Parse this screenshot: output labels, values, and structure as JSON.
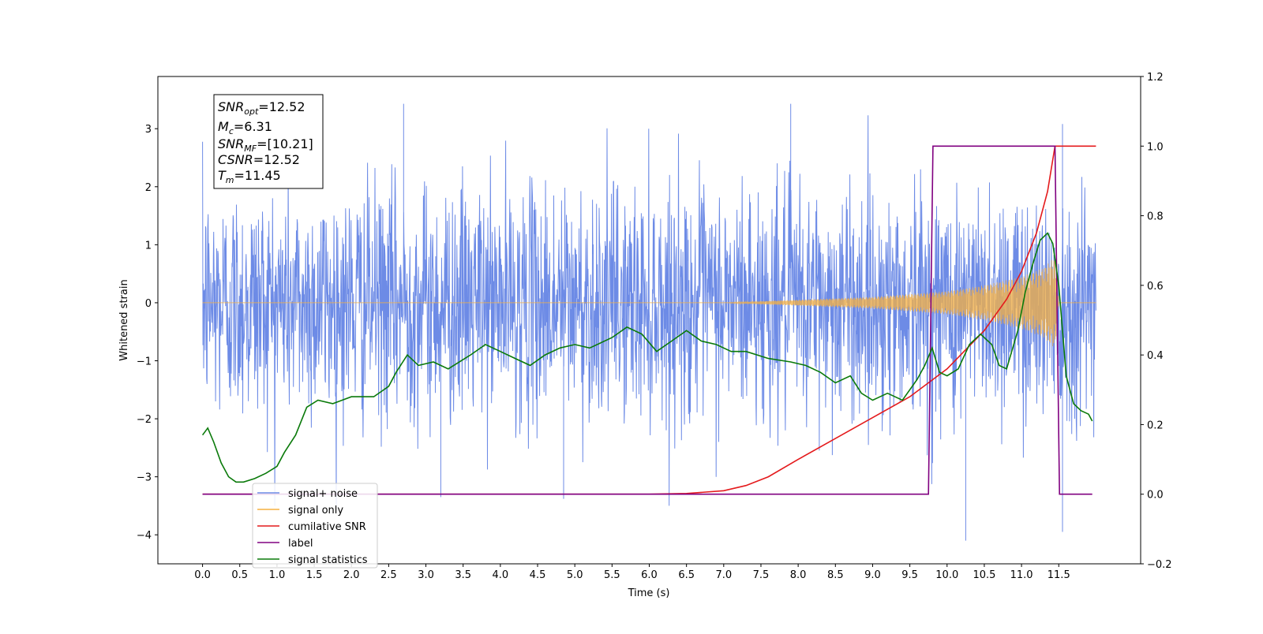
{
  "chart_data": {
    "type": "line",
    "xlabel": "Time (s)",
    "ylabel": "Whitened strain",
    "xlim": [
      -0.6,
      12.6
    ],
    "ylim_left": [
      -4.5,
      3.9
    ],
    "ylim_right": [
      -0.2,
      1.2
    ],
    "x_ticks": [
      0.0,
      0.5,
      1.0,
      1.5,
      2.0,
      2.5,
      3.0,
      3.5,
      4.0,
      4.5,
      5.0,
      5.5,
      6.0,
      6.5,
      7.0,
      7.5,
      8.0,
      8.5,
      9.0,
      9.5,
      10.0,
      10.5,
      11.0,
      11.5
    ],
    "x_tick_labels": [
      "0.0",
      "0.5",
      "1.0",
      "1.5",
      "2.0",
      "2.5",
      "3.0",
      "3.5",
      "4.0",
      "4.5",
      "5.0",
      "5.5",
      "6.0",
      "6.5",
      "7.0",
      "7.5",
      "8.0",
      "8.5",
      "9.0",
      "9.5",
      "10.0",
      "10.5",
      "11.0",
      "11.5"
    ],
    "y_ticks_left": [
      3,
      2,
      1,
      0,
      -1,
      -2,
      -3,
      -4
    ],
    "y_tick_labels_left": [
      "3",
      "2",
      "1",
      "0",
      "−1",
      "−2",
      "−3",
      "−4"
    ],
    "y_ticks_right": [
      1.2,
      1.0,
      0.8,
      0.6,
      0.4,
      0.2,
      0.0,
      -0.2
    ],
    "y_tick_labels_right": [
      "1.2",
      "1.0",
      "0.8",
      "0.6",
      "0.4",
      "0.2",
      "0.0",
      "−0.2"
    ],
    "grid": false,
    "legend_position": "bottom-left",
    "info_box": {
      "snr_opt": {
        "main": "SNR",
        "sub": "opt",
        "value": "=12.52"
      },
      "mc": {
        "main": "M",
        "sub": "c",
        "value": "=6.31"
      },
      "snr_mf": {
        "main": "SNR",
        "sub": "MF",
        "value": "=[10.21]"
      },
      "csnr": {
        "main": "CSNR",
        "sub": "",
        "value": "=12.52"
      },
      "tm": {
        "main": "T",
        "sub": "m",
        "value": "=11.45"
      }
    },
    "series": [
      {
        "name": "signal+ noise",
        "color": "#6d8be6",
        "axis": "left",
        "kind": "noise",
        "x_range": [
          0.0,
          12.0
        ],
        "envelope": {
          "sigma": 1.0,
          "max": 3.43,
          "min": -4.1
        },
        "outliers": [
          [
            2.7,
            3.43
          ],
          [
            10.25,
            -4.1
          ],
          [
            11.55,
            -3.95
          ],
          [
            3.2,
            -3.35
          ],
          [
            4.85,
            -3.38
          ],
          [
            7.9,
            3.43
          ],
          [
            11.55,
            3.08
          ]
        ]
      },
      {
        "name": "signal only",
        "color": "#f5b041",
        "axis": "left",
        "kind": "chirp",
        "x_range": [
          0.0,
          12.0
        ],
        "amplitude_points": [
          [
            0.0,
            0.0
          ],
          [
            7.0,
            0.0
          ],
          [
            8.0,
            0.05
          ],
          [
            9.0,
            0.1
          ],
          [
            10.0,
            0.2
          ],
          [
            10.5,
            0.3
          ],
          [
            11.0,
            0.45
          ],
          [
            11.3,
            0.6
          ],
          [
            11.45,
            0.8
          ],
          [
            11.5,
            0.0
          ],
          [
            12.0,
            0.0
          ]
        ]
      },
      {
        "name": "cumilative SNR",
        "color": "#e41a1c",
        "axis": "right",
        "points": [
          [
            0.0,
            0.0
          ],
          [
            6.0,
            0.0
          ],
          [
            6.5,
            0.002
          ],
          [
            7.0,
            0.01
          ],
          [
            7.3,
            0.025
          ],
          [
            7.6,
            0.05
          ],
          [
            8.0,
            0.1
          ],
          [
            8.5,
            0.16
          ],
          [
            9.0,
            0.22
          ],
          [
            9.5,
            0.28
          ],
          [
            10.0,
            0.36
          ],
          [
            10.5,
            0.47
          ],
          [
            10.8,
            0.56
          ],
          [
            11.0,
            0.64
          ],
          [
            11.2,
            0.75
          ],
          [
            11.35,
            0.87
          ],
          [
            11.45,
            1.0
          ],
          [
            12.0,
            1.0
          ]
        ]
      },
      {
        "name": "label",
        "color": "#800080",
        "axis": "right",
        "points": [
          [
            0.0,
            0.0
          ],
          [
            9.75,
            0.0
          ],
          [
            9.81,
            1.0
          ],
          [
            11.45,
            1.0
          ],
          [
            11.51,
            0.0
          ],
          [
            11.95,
            0.0
          ]
        ]
      },
      {
        "name": "signal statistics",
        "color": "#0a7a0a",
        "axis": "right",
        "points": [
          [
            0.0,
            0.17
          ],
          [
            0.07,
            0.19
          ],
          [
            0.15,
            0.15
          ],
          [
            0.25,
            0.09
          ],
          [
            0.35,
            0.05
          ],
          [
            0.45,
            0.035
          ],
          [
            0.55,
            0.035
          ],
          [
            0.7,
            0.045
          ],
          [
            0.85,
            0.06
          ],
          [
            1.0,
            0.08
          ],
          [
            1.1,
            0.12
          ],
          [
            1.25,
            0.17
          ],
          [
            1.4,
            0.25
          ],
          [
            1.55,
            0.27
          ],
          [
            1.75,
            0.26
          ],
          [
            2.0,
            0.28
          ],
          [
            2.3,
            0.28
          ],
          [
            2.5,
            0.31
          ],
          [
            2.6,
            0.35
          ],
          [
            2.75,
            0.4
          ],
          [
            2.9,
            0.37
          ],
          [
            3.1,
            0.38
          ],
          [
            3.3,
            0.36
          ],
          [
            3.6,
            0.4
          ],
          [
            3.8,
            0.43
          ],
          [
            4.0,
            0.41
          ],
          [
            4.2,
            0.39
          ],
          [
            4.4,
            0.37
          ],
          [
            4.6,
            0.4
          ],
          [
            4.8,
            0.42
          ],
          [
            5.0,
            0.43
          ],
          [
            5.2,
            0.42
          ],
          [
            5.5,
            0.45
          ],
          [
            5.7,
            0.48
          ],
          [
            5.9,
            0.46
          ],
          [
            6.1,
            0.41
          ],
          [
            6.3,
            0.44
          ],
          [
            6.5,
            0.47
          ],
          [
            6.7,
            0.44
          ],
          [
            6.9,
            0.43
          ],
          [
            7.1,
            0.41
          ],
          [
            7.3,
            0.41
          ],
          [
            7.6,
            0.39
          ],
          [
            7.9,
            0.38
          ],
          [
            8.1,
            0.37
          ],
          [
            8.3,
            0.35
          ],
          [
            8.5,
            0.32
          ],
          [
            8.7,
            0.34
          ],
          [
            8.85,
            0.29
          ],
          [
            9.0,
            0.27
          ],
          [
            9.2,
            0.29
          ],
          [
            9.4,
            0.27
          ],
          [
            9.6,
            0.33
          ],
          [
            9.7,
            0.37
          ],
          [
            9.8,
            0.42
          ],
          [
            9.9,
            0.35
          ],
          [
            10.0,
            0.34
          ],
          [
            10.15,
            0.36
          ],
          [
            10.3,
            0.43
          ],
          [
            10.45,
            0.46
          ],
          [
            10.6,
            0.43
          ],
          [
            10.7,
            0.37
          ],
          [
            10.8,
            0.36
          ],
          [
            10.95,
            0.47
          ],
          [
            11.05,
            0.58
          ],
          [
            11.15,
            0.66
          ],
          [
            11.25,
            0.73
          ],
          [
            11.35,
            0.75
          ],
          [
            11.42,
            0.72
          ],
          [
            11.5,
            0.6
          ],
          [
            11.6,
            0.34
          ],
          [
            11.7,
            0.26
          ],
          [
            11.8,
            0.24
          ],
          [
            11.9,
            0.23
          ],
          [
            11.95,
            0.21
          ]
        ]
      }
    ]
  }
}
